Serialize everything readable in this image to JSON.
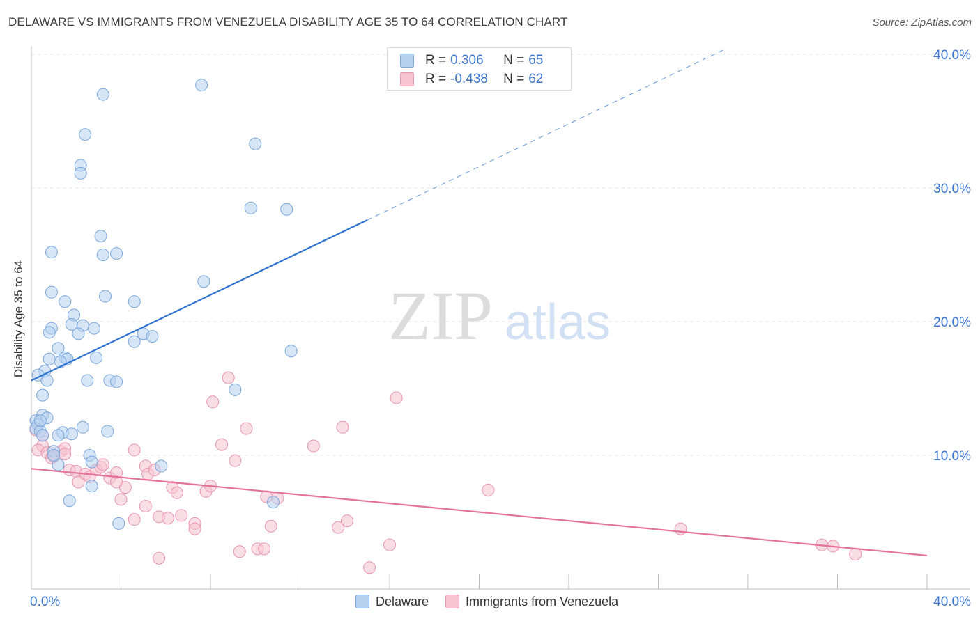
{
  "title": "DELAWARE VS IMMIGRANTS FROM VENEZUELA DISABILITY AGE 35 TO 64 CORRELATION CHART",
  "source": "Source: ZipAtlas.com",
  "watermark": {
    "zip": "ZIP",
    "atlas": "atlas"
  },
  "legend": {
    "rows": [
      {
        "r_label": "R =",
        "r_value": "0.306",
        "n_label": "N =",
        "n_value": "65"
      },
      {
        "r_label": "R =",
        "r_value": "-0.438",
        "n_label": "N =",
        "n_value": "62"
      }
    ]
  },
  "colors": {
    "blue_fill": "#b7d1f1",
    "blue_stroke": "#7aa6dc",
    "blue_line": "#2e73d0",
    "pink_fill": "#f6c3d2",
    "pink_stroke": "#e895b0",
    "pink_line": "#e4729b",
    "axis_text": "#3d74cc",
    "grid": "#e4e4e4"
  },
  "chart_data": {
    "type": "scatter",
    "title": "DELAWARE VS IMMIGRANTS FROM VENEZUELA DISABILITY AGE 35 TO 64 CORRELATION CHART",
    "xlabel": "",
    "ylabel": "Disability Age 35 to 64",
    "xlim": [
      0,
      40
    ],
    "ylim": [
      0,
      40
    ],
    "x_ticks": [
      "0.0%",
      "40.0%"
    ],
    "y_ticks": [
      "10.0%",
      "20.0%",
      "30.0%",
      "40.0%"
    ],
    "legend_placement": "bottom",
    "series": [
      {
        "name": "Delaware",
        "r": 0.306,
        "n": 65,
        "trend": {
          "x": [
            0,
            15
          ],
          "y": [
            15.6,
            27.6
          ],
          "dashed_to": [
            31,
            40.4
          ]
        },
        "points": [
          [
            3.2,
            37.0
          ],
          [
            7.6,
            37.7
          ],
          [
            2.4,
            34.0
          ],
          [
            10.0,
            33.3
          ],
          [
            2.2,
            31.7
          ],
          [
            2.2,
            31.1
          ],
          [
            9.8,
            28.5
          ],
          [
            11.4,
            28.4
          ],
          [
            3.1,
            26.4
          ],
          [
            0.9,
            25.2
          ],
          [
            3.2,
            25.0
          ],
          [
            3.8,
            25.1
          ],
          [
            7.7,
            23.0
          ],
          [
            0.9,
            22.2
          ],
          [
            3.3,
            21.9
          ],
          [
            1.5,
            21.5
          ],
          [
            4.6,
            21.5
          ],
          [
            1.9,
            20.5
          ],
          [
            1.8,
            19.8
          ],
          [
            2.3,
            19.7
          ],
          [
            2.8,
            19.5
          ],
          [
            0.9,
            19.5
          ],
          [
            0.8,
            19.2
          ],
          [
            2.1,
            19.1
          ],
          [
            5.0,
            19.1
          ],
          [
            5.4,
            18.9
          ],
          [
            4.6,
            18.5
          ],
          [
            1.2,
            18.0
          ],
          [
            11.6,
            17.8
          ],
          [
            1.5,
            17.3
          ],
          [
            1.6,
            17.2
          ],
          [
            0.8,
            17.2
          ],
          [
            2.9,
            17.3
          ],
          [
            1.3,
            17.0
          ],
          [
            0.6,
            16.3
          ],
          [
            0.3,
            16.0
          ],
          [
            0.7,
            15.6
          ],
          [
            2.5,
            15.6
          ],
          [
            3.5,
            15.6
          ],
          [
            3.8,
            15.5
          ],
          [
            9.1,
            14.9
          ],
          [
            0.5,
            14.5
          ],
          [
            0.5,
            13.0
          ],
          [
            0.7,
            12.8
          ],
          [
            0.2,
            12.6
          ],
          [
            0.3,
            12.3
          ],
          [
            2.3,
            12.1
          ],
          [
            3.4,
            11.8
          ],
          [
            0.2,
            12.0
          ],
          [
            0.4,
            11.8
          ],
          [
            1.4,
            11.7
          ],
          [
            1.8,
            11.6
          ],
          [
            0.5,
            11.5
          ],
          [
            2.6,
            10.0
          ],
          [
            1.0,
            10.3
          ],
          [
            2.7,
            9.5
          ],
          [
            1.2,
            9.3
          ],
          [
            5.8,
            9.2
          ],
          [
            2.7,
            7.7
          ],
          [
            1.7,
            6.6
          ],
          [
            10.8,
            6.5
          ],
          [
            3.9,
            4.9
          ],
          [
            1.2,
            11.5
          ],
          [
            0.4,
            12.6
          ],
          [
            1.0,
            10.0
          ]
        ]
      },
      {
        "name": "Immigrants from Venezuela",
        "r": -0.438,
        "n": 62,
        "trend": {
          "x": [
            0,
            40
          ],
          "y": [
            9.0,
            2.5
          ]
        },
        "points": [
          [
            0.2,
            11.9
          ],
          [
            0.5,
            11.5
          ],
          [
            0.5,
            10.7
          ],
          [
            0.3,
            10.4
          ],
          [
            0.7,
            10.2
          ],
          [
            1.0,
            9.9
          ],
          [
            0.9,
            9.8
          ],
          [
            1.3,
            10.3
          ],
          [
            1.5,
            10.5
          ],
          [
            1.5,
            10.1
          ],
          [
            1.7,
            8.9
          ],
          [
            2.0,
            8.8
          ],
          [
            2.4,
            8.6
          ],
          [
            2.6,
            8.4
          ],
          [
            2.1,
            8.0
          ],
          [
            2.9,
            8.9
          ],
          [
            3.1,
            9.1
          ],
          [
            3.2,
            9.3
          ],
          [
            3.5,
            8.3
          ],
          [
            3.8,
            8.7
          ],
          [
            3.8,
            8.0
          ],
          [
            4.2,
            7.6
          ],
          [
            4.6,
            10.4
          ],
          [
            5.1,
            9.2
          ],
          [
            5.2,
            8.6
          ],
          [
            5.5,
            8.9
          ],
          [
            4.0,
            6.7
          ],
          [
            5.1,
            6.2
          ],
          [
            4.6,
            5.2
          ],
          [
            5.7,
            5.4
          ],
          [
            6.1,
            5.3
          ],
          [
            6.3,
            7.6
          ],
          [
            6.5,
            7.2
          ],
          [
            6.7,
            5.5
          ],
          [
            7.3,
            4.9
          ],
          [
            7.3,
            4.5
          ],
          [
            7.8,
            7.3
          ],
          [
            8.0,
            7.7
          ],
          [
            8.1,
            14.0
          ],
          [
            8.5,
            10.8
          ],
          [
            8.8,
            15.8
          ],
          [
            9.1,
            9.6
          ],
          [
            9.6,
            12.0
          ],
          [
            10.5,
            6.9
          ],
          [
            11.0,
            6.8
          ],
          [
            10.7,
            4.7
          ],
          [
            10.1,
            3.0
          ],
          [
            10.4,
            3.0
          ],
          [
            9.3,
            2.8
          ],
          [
            5.7,
            2.3
          ],
          [
            12.6,
            10.7
          ],
          [
            13.9,
            12.1
          ],
          [
            14.1,
            5.1
          ],
          [
            13.7,
            4.6
          ],
          [
            16.3,
            14.3
          ],
          [
            16.0,
            3.3
          ],
          [
            15.1,
            1.6
          ],
          [
            20.4,
            7.4
          ],
          [
            29.0,
            4.5
          ],
          [
            35.3,
            3.3
          ],
          [
            35.8,
            3.2
          ],
          [
            36.8,
            2.6
          ]
        ]
      }
    ]
  }
}
